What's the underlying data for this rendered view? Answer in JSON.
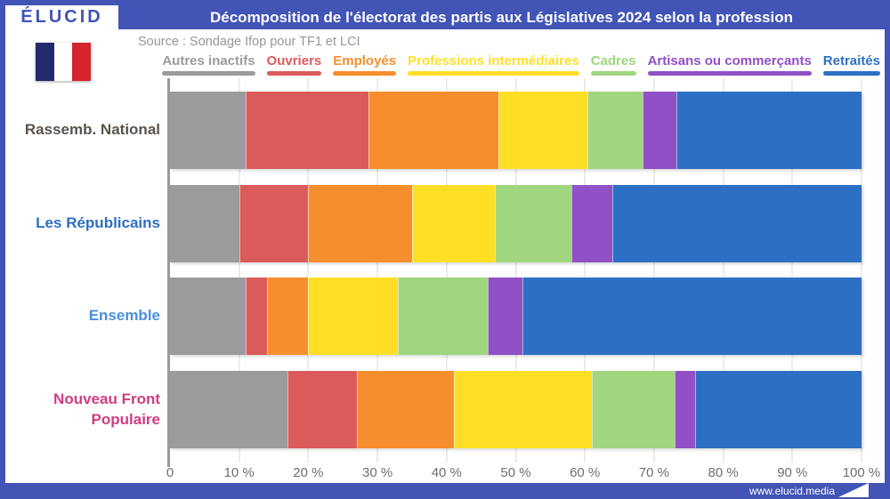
{
  "header": {
    "logo": "ÉLUCID",
    "title": "Décomposition de l'électorat des partis aux Législatives 2024 selon la profession"
  },
  "source_line": "Source : Sondage Ifop pour TF1 et LCI",
  "flag_colors": [
    "#232A6D",
    "#FFFFFF",
    "#D5252D"
  ],
  "footer": {
    "url": "www.elucid.media"
  },
  "colors": {
    "band_blue": "#4254B6",
    "grid": "#ECECEC",
    "axis": "#9A9A9A",
    "tick_text": "#6F6F6F",
    "source_text": "#979797"
  },
  "chart_data": {
    "type": "bar",
    "subtype": "horizontal-stacked",
    "title": "Décomposition de l'électorat des partis aux Législatives 2024 selon la profession",
    "unit": "%",
    "xlim": [
      0,
      100
    ],
    "grid": true,
    "legend_position": "top",
    "x_ticks": [
      "0",
      "10 %",
      "20 %",
      "30 %",
      "40 %",
      "50 %",
      "60 %",
      "70 %",
      "80 %",
      "90 %",
      "100 %"
    ],
    "categories": [
      {
        "label": "Rassemb. National",
        "color": "#59524C"
      },
      {
        "label": "Les Républicains",
        "color": "#2D6FC4"
      },
      {
        "label": "Ensemble",
        "color": "#4A90D9"
      },
      {
        "label": "Nouveau Front Populaire",
        "color": "#D23B82"
      }
    ],
    "series": [
      {
        "name": "Autres inactifs",
        "color": "#9B9B9B",
        "values": [
          11,
          10,
          11,
          17
        ]
      },
      {
        "name": "Ouvriers",
        "color": "#DB5B5B",
        "values": [
          18,
          10,
          3,
          10
        ]
      },
      {
        "name": "Employés",
        "color": "#F78E2D",
        "values": [
          19,
          15,
          6,
          14
        ]
      },
      {
        "name": "Professions intermédiaires",
        "color": "#FFDF26",
        "values": [
          13,
          12,
          13,
          20
        ]
      },
      {
        "name": "Cadres",
        "color": "#9FD67E",
        "values": [
          8,
          11,
          13,
          12
        ]
      },
      {
        "name": "Artisans ou commerçants",
        "color": "#9150C6",
        "values": [
          5,
          6,
          5,
          3
        ]
      },
      {
        "name": "Retraités",
        "color": "#2D6FC4",
        "values": [
          27,
          36,
          49,
          24
        ]
      }
    ]
  }
}
